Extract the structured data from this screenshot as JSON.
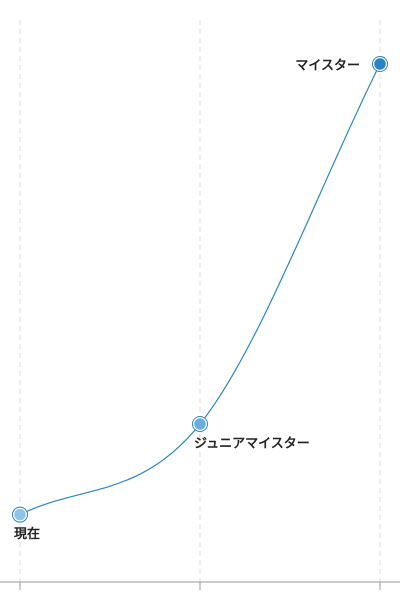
{
  "chart_data": {
    "type": "line",
    "categories": [
      "現在",
      "ジュニアマイスター",
      "マイスター"
    ],
    "values": [
      13,
      30.5,
      100
    ],
    "color": "#2b86c2",
    "point_colors": [
      "#8fc3ea",
      "#6aaee0",
      "#2a82c8"
    ],
    "ylim": [
      0,
      100
    ],
    "grid": true
  }
}
